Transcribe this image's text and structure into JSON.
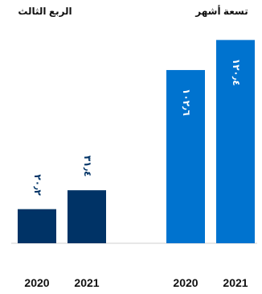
{
  "chart_data": [
    {
      "type": "bar",
      "title": "الربع الثالث",
      "categories": [
        "2020",
        "2021"
      ],
      "values": [
        20.2,
        31.4
      ],
      "data_labels": [
        "٢٠٫٢",
        "٣١٫٤"
      ],
      "color": "#003366",
      "ylim": [
        0,
        125
      ],
      "grid": false
    },
    {
      "type": "bar",
      "title": "تسعة أشهر",
      "categories": [
        "2020",
        "2021"
      ],
      "values": [
        102.6,
        120.4
      ],
      "data_labels": [
        "١٠٢٫٦",
        "١٢٠٫٤"
      ],
      "color": "#0073cf",
      "ylim": [
        0,
        125
      ],
      "grid": false
    }
  ]
}
